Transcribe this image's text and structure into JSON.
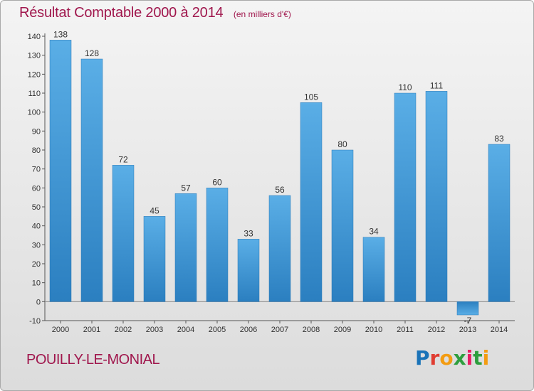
{
  "header": {
    "title": "Résultat Comptable 2000 à 2014",
    "subtitle": "(en milliers d'€)"
  },
  "footer": {
    "city": "POUILLY-LE-MONIAL",
    "brand": "Proxiti",
    "brand_colors": [
      "#1a73b8",
      "#e03c31",
      "#f39c12",
      "#2e9e3e",
      "#e91e63",
      "#2e9e3e",
      "#f39c12"
    ]
  },
  "colors": {
    "bar_light": "#5aaee6",
    "bar_dark": "#2b7fc0",
    "text_accent": "#a0174d"
  },
  "chart_data": {
    "type": "bar",
    "categories": [
      "2000",
      "2001",
      "2002",
      "2003",
      "2004",
      "2005",
      "2006",
      "2007",
      "2008",
      "2009",
      "2010",
      "2011",
      "2012",
      "2013",
      "2014"
    ],
    "values": [
      138,
      128,
      72,
      45,
      57,
      60,
      33,
      56,
      105,
      80,
      34,
      110,
      111,
      -7,
      83
    ],
    "ylim": [
      -10,
      140
    ],
    "yticks": [
      -10,
      0,
      10,
      20,
      30,
      40,
      50,
      60,
      70,
      80,
      90,
      100,
      110,
      120,
      130,
      140
    ],
    "grid": false
  }
}
